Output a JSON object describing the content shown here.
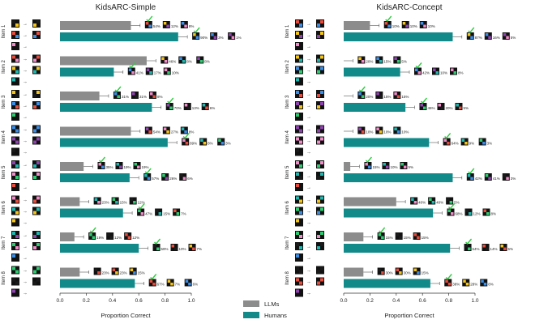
{
  "legend": {
    "llm_label": "LLMs",
    "human_label": "Humans",
    "llm_color": "#8c8c8c",
    "human_color": "#138a8a"
  },
  "chart_data": [
    {
      "type": "bar",
      "orientation": "horizontal",
      "title": "KidsARC-Simple",
      "xlabel": "Proportion Correct",
      "xlim": [
        0,
        1
      ],
      "xticks": [
        0.0,
        0.2,
        0.4,
        0.6,
        0.8,
        1.0
      ],
      "categories": [
        "Item 1",
        "Item 2",
        "Item 3",
        "Item 4",
        "Item 5",
        "Item 6",
        "Item 7",
        "Item 8"
      ],
      "series": [
        {
          "name": "LLMs",
          "values": [
            0.54,
            0.66,
            0.3,
            0.54,
            0.18,
            0.15,
            0.11,
            0.15
          ]
        },
        {
          "name": "Humans",
          "values": [
            0.9,
            0.41,
            0.7,
            0.82,
            0.53,
            0.48,
            0.6,
            0.57
          ]
        }
      ],
      "response_percentages": {
        "LLMs": [
          [
            "54%",
            "12%",
            "8%"
          ],
          [
            "46%",
            "8%",
            "8%"
          ],
          [
            "31%",
            "31%",
            "8%"
          ],
          [
            "54%",
            "27%",
            "8%"
          ],
          [
            "35%",
            "19%",
            "19%"
          ],
          [
            "23%",
            "15%",
            "12%"
          ],
          [
            "19%",
            "12%",
            "12%"
          ],
          [
            "23%",
            "23%",
            "15%"
          ]
        ],
        "Humans": [
          [
            "90%",
            "3%",
            "1%"
          ],
          [
            "41%",
            "17%",
            "10%"
          ],
          [
            "70%",
            "13%",
            "6%"
          ],
          [
            "89%",
            "8%",
            "3%"
          ],
          [
            "57%",
            "26%",
            "6%"
          ],
          [
            "47%",
            "15%",
            "7%"
          ],
          [
            "59%",
            "10%",
            "7%"
          ],
          [
            "67%",
            "7%",
            "6%"
          ]
        ]
      }
    },
    {
      "type": "bar",
      "orientation": "horizontal",
      "title": "KidsARC-Concept",
      "xlabel": "Proportion Correct",
      "xlim": [
        0,
        1
      ],
      "xticks": [
        0.0,
        0.2,
        0.4,
        0.6,
        0.8,
        1.0
      ],
      "categories": [
        "Item 1",
        "Item 2",
        "Item 3",
        "Item 4",
        "Item 5",
        "Item 6",
        "Item 7",
        "Item 8"
      ],
      "series": [
        {
          "name": "LLMs",
          "values": [
            0.2,
            0.0,
            0.0,
            0.0,
            0.05,
            0.4,
            0.15,
            0.15
          ]
        },
        {
          "name": "Humans",
          "values": [
            0.83,
            0.43,
            0.47,
            0.65,
            0.83,
            0.68,
            0.81,
            0.66
          ]
        }
      ],
      "response_percentages": {
        "LLMs": [
          [
            "10%",
            "10%",
            "10%"
          ],
          [
            "20%",
            "15%",
            "5%"
          ],
          [
            "20%",
            "15%",
            "15%"
          ],
          [
            "10%",
            "10%",
            "10%"
          ],
          [
            "15%",
            "10%",
            "5%"
          ],
          [
            "40%",
            "40%",
            "5%"
          ],
          [
            "15%",
            "15%",
            "15%"
          ],
          [
            "30%",
            "30%",
            "15%"
          ]
        ],
        "Humans": [
          [
            "87%",
            "16%",
            "5%"
          ],
          [
            "42%",
            "10%",
            "8%"
          ],
          [
            "46%",
            "20%",
            "5%"
          ],
          [
            "64%",
            "9%",
            "3%"
          ],
          [
            "42%",
            "41%",
            "3%"
          ],
          [
            "68%",
            "12%",
            "8%"
          ],
          [
            "64%",
            "14%",
            "5%"
          ],
          [
            "38%",
            "28%",
            "8%"
          ]
        ]
      }
    }
  ]
}
